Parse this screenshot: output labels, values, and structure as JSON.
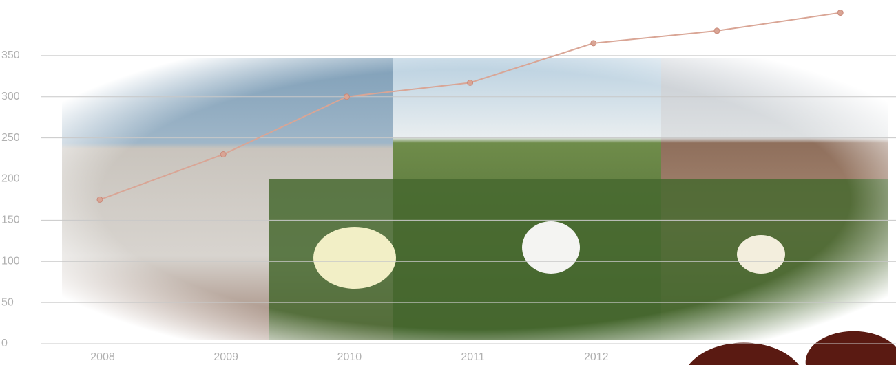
{
  "chart_data": {
    "type": "line",
    "categories": [
      "2008",
      "2009",
      "2010",
      "2011",
      "2012",
      null,
      null
    ],
    "series": [
      {
        "color": "#d9a595",
        "values": [
          175,
          230,
          300,
          317,
          365,
          380,
          402
        ]
      }
    ],
    "ylim": [
      0,
      415
    ],
    "yticks": [
      0,
      50,
      100,
      150,
      200,
      250,
      300,
      350
    ],
    "grid": true
  }
}
